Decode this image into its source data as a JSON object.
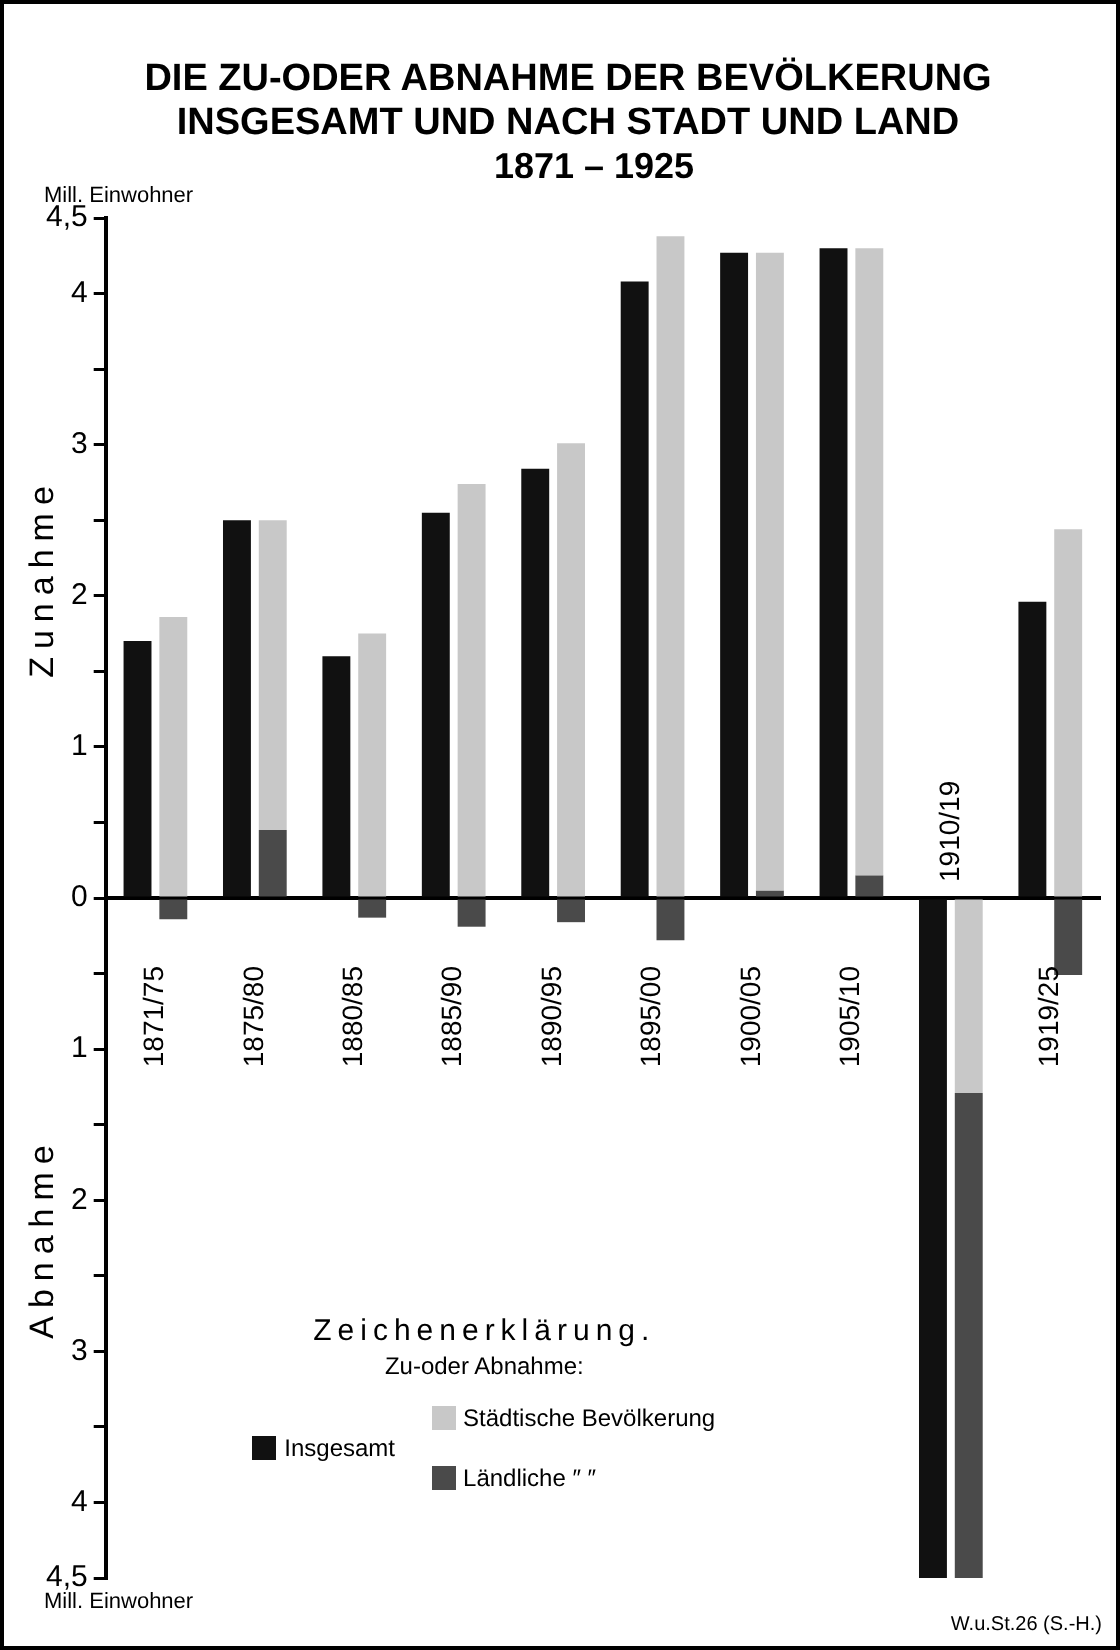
{
  "chart_data": {
    "type": "bar",
    "title": "DIE ZU-ODER ABNAHME DER BEVÖLKERUNG\nINSGESAMT UND NACH STADT UND LAND",
    "subtitle": "1871 – 1925",
    "ylabel": "Mill. Einwohner",
    "legend_title": "Zeichenerklärung.",
    "annotations": [
      "Zunahme",
      "Abnahme",
      "Mill. Einwohner",
      "Zu-oder Abnahme:",
      "W.u.St.26 (S.-H.)"
    ],
    "categories": [
      "1871/75",
      "1875/80",
      "1880/85",
      "1885/90",
      "1890/95",
      "1895/00",
      "1900/05",
      "1905/10",
      "1910/19",
      "1919/25"
    ],
    "series": [
      {
        "name": "Insgesamt",
        "color": "#111111",
        "values": [
          1.7,
          2.5,
          1.6,
          2.55,
          2.84,
          4.08,
          4.27,
          4.3,
          -4.5,
          1.96
        ]
      },
      {
        "name": "Städtische Bevölkerung",
        "color": "#c8c8c8",
        "base": [
          0,
          0.45,
          0,
          0,
          0,
          0,
          0.05,
          0.15,
          0,
          0
        ],
        "values": [
          1.86,
          2.05,
          1.75,
          2.74,
          3.01,
          4.38,
          4.22,
          4.15,
          -1.29,
          2.44
        ]
      },
      {
        "name": "Ländliche ″ ″",
        "color": "#4a4a4a",
        "base": [
          0,
          0,
          0,
          0,
          0,
          0,
          0,
          0,
          -1.29,
          0
        ],
        "values": [
          -0.14,
          0.45,
          -0.13,
          -0.19,
          -0.16,
          -0.28,
          0.05,
          0.15,
          -3.21,
          -0.51
        ]
      }
    ],
    "ylim": [
      -4.5,
      4.5
    ],
    "yticks": [
      {
        "value": 4.5,
        "label": "4,5"
      },
      4,
      {
        "value": 3.5,
        "label": null
      },
      3,
      {
        "value": 2.5,
        "label": null
      },
      2,
      {
        "value": 1.5,
        "label": null
      },
      1,
      {
        "value": 0.5,
        "label": null
      },
      0,
      {
        "value": -0.5,
        "label": null
      },
      {
        "value": -1,
        "label": "1"
      },
      {
        "value": -1.5,
        "label": null
      },
      {
        "value": -2,
        "label": "2"
      },
      {
        "value": -2.5,
        "label": null
      },
      {
        "value": -3,
        "label": "3"
      },
      {
        "value": -3.5,
        "label": null
      },
      {
        "value": -4,
        "label": "4"
      },
      {
        "value": -4.5,
        "label": "4,5"
      }
    ],
    "grid": false,
    "legend": "bottom"
  }
}
